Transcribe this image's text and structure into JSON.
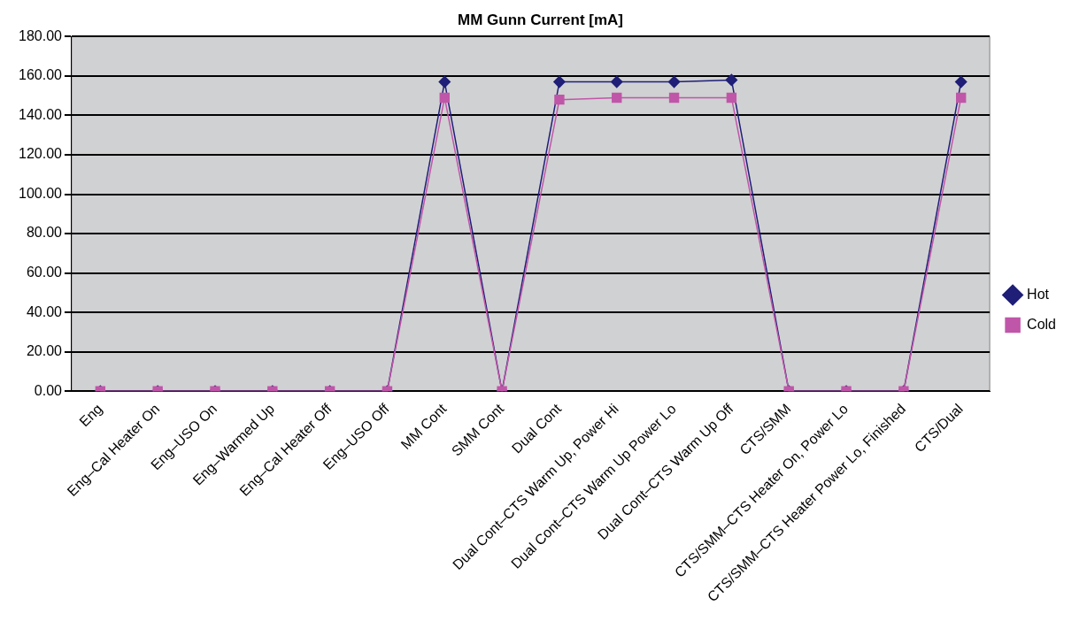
{
  "chart_data": {
    "type": "line",
    "title": "MM Gunn Current [mA]",
    "categories": [
      "Eng",
      "Eng–Cal Heater On",
      "Eng–USO On",
      "Eng–Warmed Up",
      "Eng–Cal Heater Off",
      "Eng–USO Off",
      "MM Cont",
      "SMM Cont",
      "Dual Cont",
      "Dual Cont–CTS Warm Up, Power Hi",
      "Dual Cont–CTS Warm Up Power Lo",
      "Dual Cont–CTS Warm Up Off",
      "CTS/SMM",
      "CTS/SMM–CTS Heater On, Power Lo",
      "CTS/SMM–CTS Heater Power Lo, Finished",
      "CTS/Dual"
    ],
    "series": [
      {
        "name": "Hot",
        "color": "#1f1f78",
        "marker": "diamond",
        "values": [
          0,
          0,
          0,
          0,
          0,
          0,
          157,
          0,
          157,
          157,
          157,
          158,
          0,
          0,
          0,
          157
        ]
      },
      {
        "name": "Cold",
        "color": "#c056a8",
        "marker": "square",
        "values": [
          0,
          0,
          0,
          0,
          0,
          0,
          149,
          0,
          148,
          149,
          149,
          149,
          0,
          0,
          0,
          149
        ]
      }
    ],
    "ylim": [
      0,
      180
    ],
    "yticks": [
      {
        "value": 0,
        "label": "0.00"
      },
      {
        "value": 20,
        "label": "20.00"
      },
      {
        "value": 40,
        "label": "40.00"
      },
      {
        "value": 60,
        "label": "60.00"
      },
      {
        "value": 80,
        "label": "80.00"
      },
      {
        "value": 100,
        "label": "100.00"
      },
      {
        "value": 120,
        "label": "120.00"
      },
      {
        "value": 140,
        "label": "140.00"
      },
      {
        "value": 160,
        "label": "160.00"
      },
      {
        "value": 180,
        "label": "180.00"
      }
    ],
    "grid": "y",
    "legend": "right",
    "line_style": "solid"
  }
}
